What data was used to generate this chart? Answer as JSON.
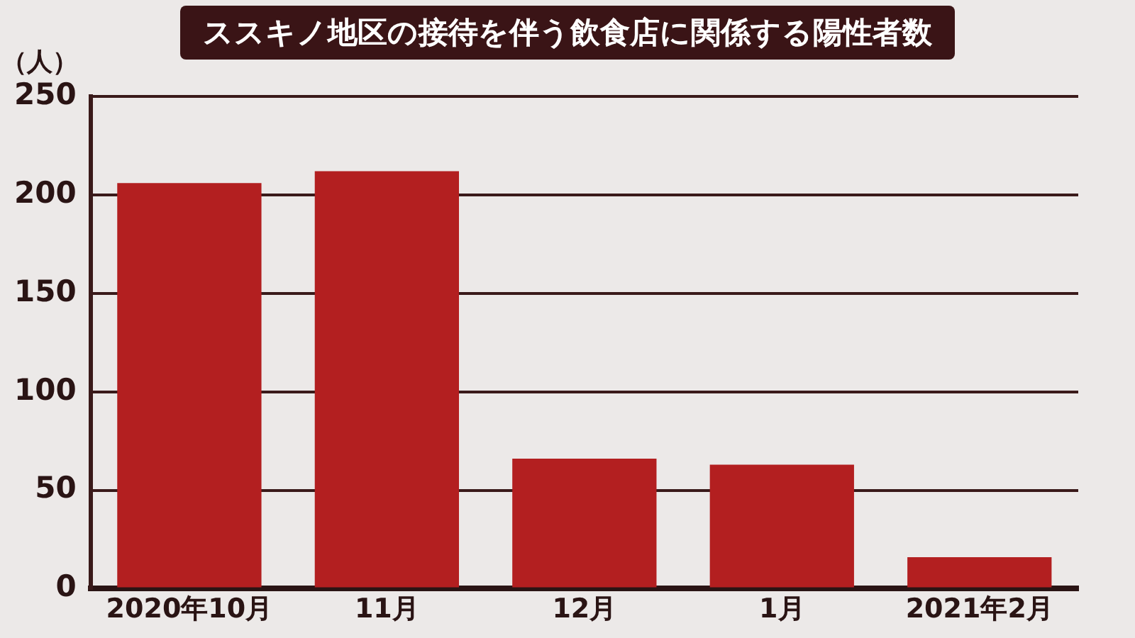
{
  "chart_data": {
    "type": "bar",
    "title": "ススキノ地区の接待を伴う飲食店に関係する陽性者数",
    "ylabel": "（人）",
    "categories": [
      "2020年10月",
      "11月",
      "12月",
      "1月",
      "2021年2月"
    ],
    "values": [
      206,
      212,
      66,
      63,
      16
    ],
    "color": "#b31f20",
    "ylim": [
      0,
      250
    ],
    "yticks": [
      0,
      50,
      100,
      150,
      200,
      250
    ],
    "grid": "y"
  }
}
